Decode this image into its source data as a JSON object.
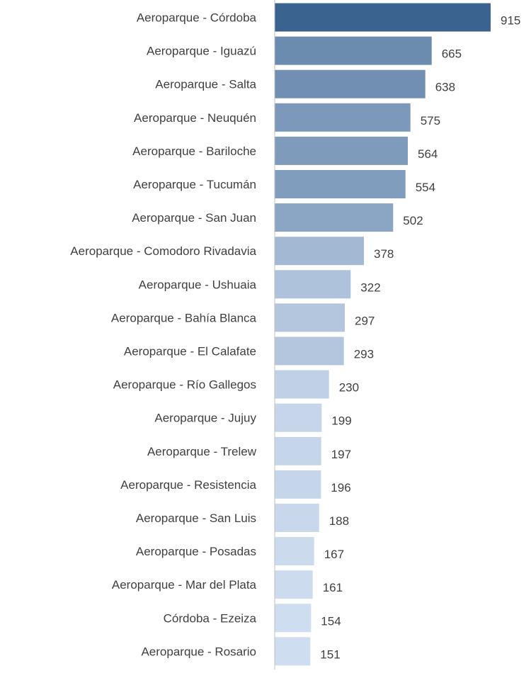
{
  "chart_data": {
    "type": "bar",
    "orientation": "horizontal",
    "title": "",
    "xlabel": "",
    "ylabel": "",
    "xlim": [
      0,
      915
    ],
    "grid": false,
    "legend": "none",
    "color_dark": "#3A6390",
    "color_light": "#CFDDF0",
    "axis_color": "#BFBFBF",
    "label_color": "#404040",
    "categories": [
      "Aeroparque - Córdoba",
      "Aeroparque - Iguazú",
      "Aeroparque - Salta",
      "Aeroparque - Neuquén",
      "Aeroparque - Bariloche",
      "Aeroparque - Tucumán",
      "Aeroparque - San Juan",
      "Aeroparque - Comodoro Rivadavia",
      "Aeroparque - Ushuaia",
      "Aeroparque - Bahía Blanca",
      "Aeroparque - El Calafate",
      "Aeroparque - Río Gallegos",
      "Aeroparque - Jujuy",
      "Aeroparque - Trelew",
      "Aeroparque - Resistencia",
      "Aeroparque - San Luis",
      "Aeroparque - Posadas",
      "Aeroparque - Mar del Plata",
      "Córdoba - Ezeiza",
      "Aeroparque - Rosario"
    ],
    "values": [
      915,
      665,
      638,
      575,
      564,
      554,
      502,
      378,
      322,
      297,
      293,
      230,
      199,
      197,
      196,
      188,
      167,
      161,
      154,
      151
    ]
  }
}
